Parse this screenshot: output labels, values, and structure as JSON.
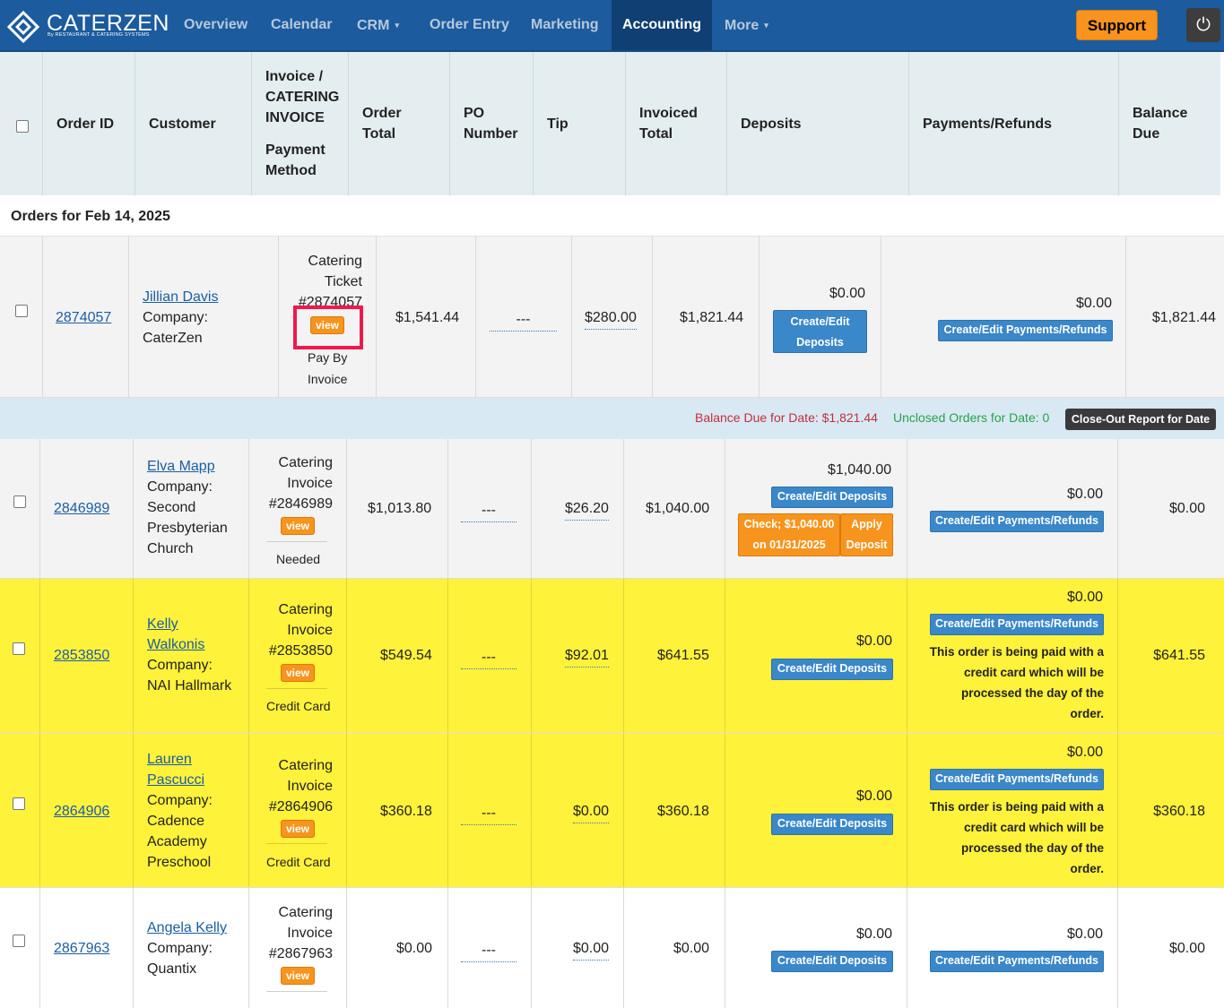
{
  "brand": {
    "name": "CATERZEN",
    "sub": "By RESTAURANT & CATERING SYSTEMS"
  },
  "nav": {
    "items": [
      {
        "label": "Overview"
      },
      {
        "label": "Calendar"
      },
      {
        "label": "CRM",
        "caret": "▾"
      },
      {
        "label": "Order Entry"
      },
      {
        "label": "Marketing"
      },
      {
        "label": "Accounting"
      },
      {
        "label": "More",
        "caret": "▾"
      }
    ],
    "support": "Support",
    "power": "⏻"
  },
  "columns": {
    "order_id": "Order ID",
    "customer": "Customer",
    "invoice_l1": "Invoice /",
    "invoice_l2": "CATERING",
    "invoice_l3": "INVOICE",
    "payment_l1": "Payment",
    "payment_l2": "Method",
    "order_total_l1": "Order",
    "order_total_l2": "Total",
    "po_l1": "PO",
    "po_l2": "Number",
    "tip": "Tip",
    "invoiced_l1": "Invoiced",
    "invoiced_l2": "Total",
    "deposits": "Deposits",
    "payments": "Payments/Refunds",
    "balance_l1": "Balance",
    "balance_l2": "Due"
  },
  "section_title": "Orders for Feb 14, 2025",
  "summary": {
    "balance_due": "Balance Due for Date: $1,821.44",
    "unclosed": "Unclosed Orders for Date: 0",
    "closeout": "Close-Out Report for Date"
  },
  "labels": {
    "view": "view",
    "company": "Company:",
    "po_empty": "---",
    "create_deposits": "Create/Edit Deposits",
    "create_deposits_l1": "Create/Edit",
    "create_deposits_l2": "Deposits",
    "create_payments": "Create/Edit Payments/Refunds",
    "cc_note": [
      "This order is being paid with a",
      "credit card which will be",
      "processed the day of the",
      "order."
    ]
  },
  "rows": [
    {
      "order_id": "2874057",
      "customer": "Jillian Davis",
      "company": [
        "CaterZen"
      ],
      "invoice": [
        "Catering",
        "Ticket",
        "#2874057"
      ],
      "payment_method": [
        "Pay By",
        "Invoice"
      ],
      "order_total": "$1,541.44",
      "tip": "$280.00",
      "invoiced_total": "$1,821.44",
      "deposits": "$0.00",
      "payments": "$0.00",
      "balance_due": "$1,821.44"
    },
    {
      "order_id": "2846989",
      "customer": "Elva Mapp",
      "company": [
        "Second",
        "Presbyterian",
        "Church"
      ],
      "invoice": [
        "Catering",
        "Invoice",
        "#2846989"
      ],
      "payment_method": [
        "Needed"
      ],
      "order_total": "$1,013.80",
      "tip": "$26.20",
      "invoiced_total": "$1,040.00",
      "deposits": "$1,040.00",
      "deposit_entry": [
        "Check; $1,040.00",
        "on 01/31/2025"
      ],
      "apply_deposit": [
        "Apply",
        "Deposit"
      ],
      "payments": "$0.00",
      "balance_due": "$0.00"
    },
    {
      "order_id": "2853850",
      "customer_l1": "Kelly",
      "customer_l2": "Walkonis",
      "company": [
        "NAI Hallmark"
      ],
      "invoice": [
        "Catering",
        "Invoice",
        "#2853850"
      ],
      "payment_method": [
        "Credit Card"
      ],
      "order_total": "$549.54",
      "tip": "$92.01",
      "invoiced_total": "$641.55",
      "deposits": "$0.00",
      "payments": "$0.00",
      "balance_due": "$641.55"
    },
    {
      "order_id": "2864906",
      "customer_l1": "Lauren",
      "customer_l2": "Pascucci",
      "company": [
        "Cadence",
        "Academy",
        "Preschool"
      ],
      "invoice": [
        "Catering",
        "Invoice",
        "#2864906"
      ],
      "payment_method": [
        "Credit Card"
      ],
      "order_total": "$360.18",
      "tip": "$0.00",
      "invoiced_total": "$360.18",
      "deposits": "$0.00",
      "payments": "$0.00",
      "balance_due": "$360.18"
    },
    {
      "order_id": "2867963",
      "customer": "Angela Kelly",
      "company": [
        "Quantix"
      ],
      "invoice": [
        "Catering",
        "Invoice",
        "#2867963"
      ],
      "order_total": "$0.00",
      "tip": "$0.00",
      "invoiced_total": "$0.00",
      "deposits": "$0.00",
      "payments": "$0.00",
      "balance_due": "$0.00"
    }
  ]
}
